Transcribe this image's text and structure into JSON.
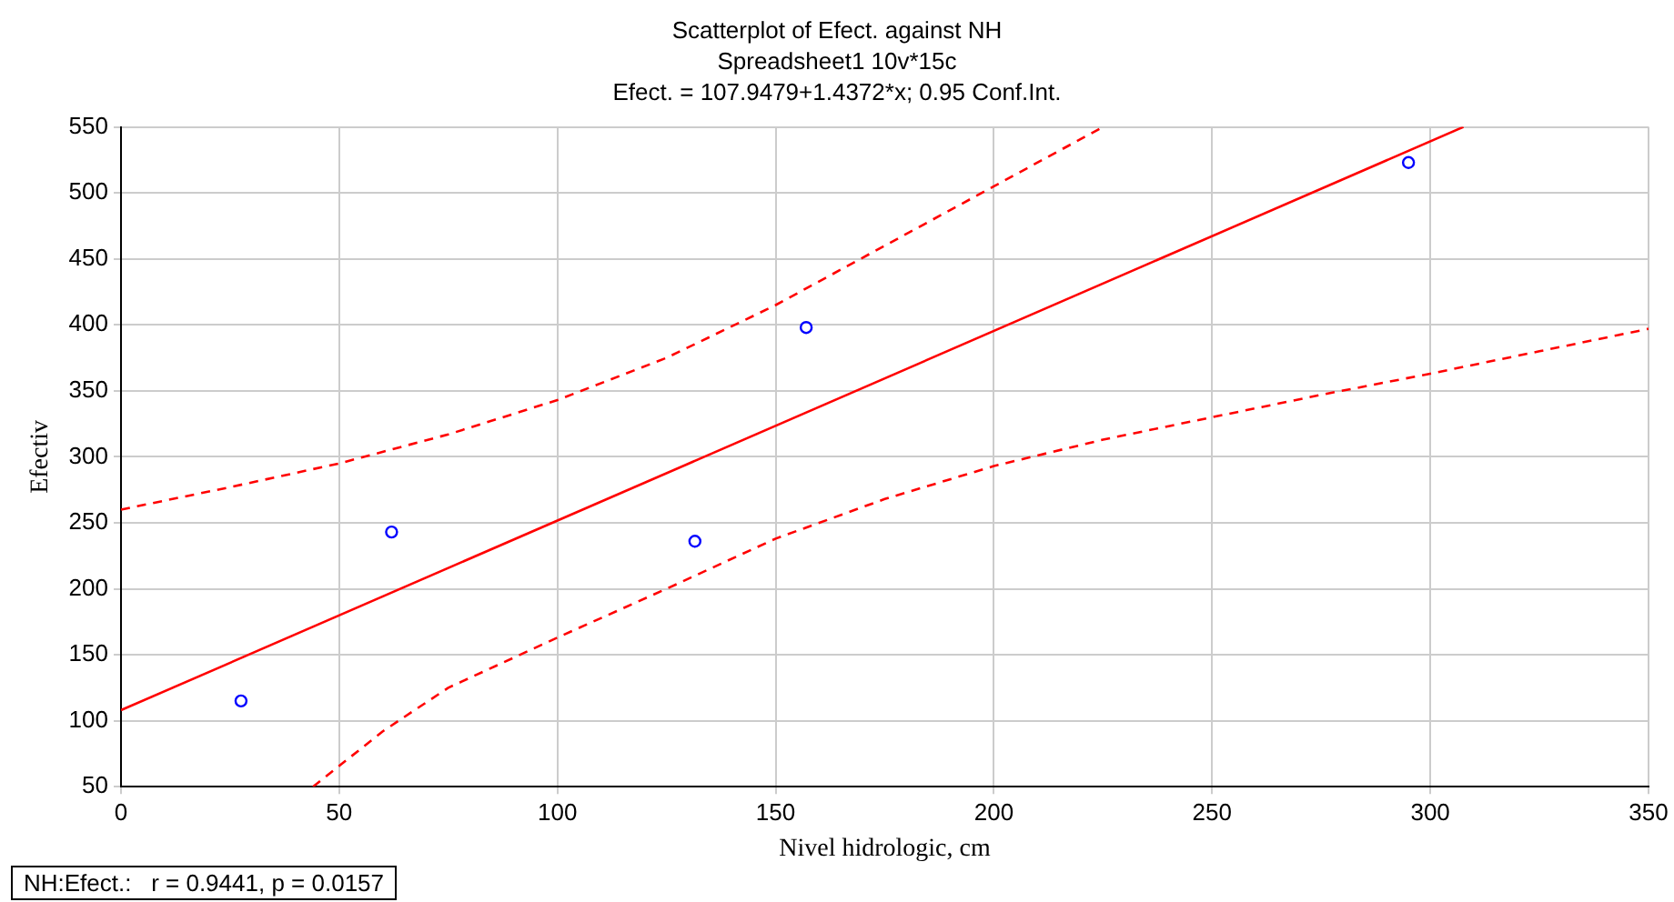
{
  "chart_data": {
    "type": "scatter",
    "title": "Scatterplot of Efect. against NH",
    "subtitle": "Spreadsheet1 10v*15c",
    "xlabel": "Nivel hidrologic, cm",
    "ylabel": "Efectiv",
    "annotations": [
      "Efect. = 107.9479+1.4372*x; 0.95 Conf.Int.",
      "NH:Efect.:   r = 0.9441, p = 0.0157"
    ],
    "xlim": [
      0,
      350
    ],
    "xticks": [
      0,
      50,
      100,
      150,
      200,
      250,
      300,
      350
    ],
    "ylim": [
      50,
      550
    ],
    "yticks": [
      50,
      100,
      150,
      200,
      250,
      300,
      350,
      400,
      450,
      500,
      550
    ],
    "grid": true,
    "legend": false,
    "marker": "circle",
    "series": [
      {
        "type": "scatter",
        "color": "#0000ff",
        "x": [
          27.5,
          62,
          131.5,
          157,
          295
        ],
        "values": [
          115,
          243,
          236,
          398,
          523
        ]
      },
      {
        "type": "line",
        "color": "#ff0000",
        "line_style": "solid",
        "marker": "none",
        "x": [
          0,
          307.6
        ],
        "values": [
          108,
          550
        ]
      },
      {
        "type": "line",
        "color": "#ff0000",
        "line_style": "dashed",
        "marker": "none",
        "x": [
          0,
          25,
          50,
          75,
          100,
          125,
          150,
          175,
          200,
          225
        ],
        "values": [
          260,
          277,
          295,
          317,
          343,
          375,
          415,
          460,
          505,
          550
        ]
      },
      {
        "type": "line",
        "color": "#ff0000",
        "line_style": "dashed",
        "marker": "none",
        "x": [
          44,
          60,
          75,
          100,
          125,
          150,
          175,
          200,
          225,
          250,
          275,
          300,
          325,
          350
        ],
        "values": [
          50,
          92,
          125,
          163,
          200,
          238,
          268,
          293,
          313,
          330,
          347,
          363,
          380,
          397
        ]
      }
    ]
  }
}
